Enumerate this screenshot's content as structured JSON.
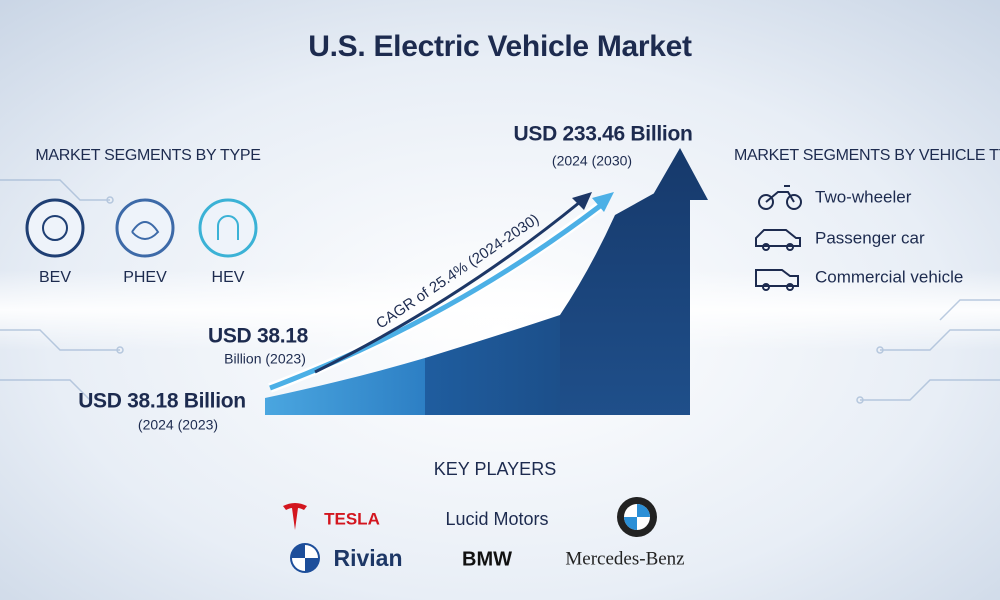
{
  "title": "U.S. Electric Vehicle Market",
  "segments_by_type": {
    "heading": "MARKET SEGMENTS BY TYPE",
    "items": [
      "BEV",
      "PHEV",
      "HEV"
    ]
  },
  "segments_by_vehicle": {
    "heading": "MARKET SEGMENTS BY VEHICLE TY",
    "items": [
      "Two-wheeler",
      "Passenger car",
      "Commercial vehicle"
    ]
  },
  "growth": {
    "end_value": "USD 233.46 Billion",
    "end_period": "(2024 (2030)",
    "cagr": "CAGR of 25.4% (2024-2030)",
    "start_value": "USD 38.18",
    "start_period": "Billion (2023)",
    "base_value": "USD 38.18 Billion",
    "base_period": "(2024 (2023)"
  },
  "key_players": {
    "heading": "KEY PLAYERS",
    "names": [
      "TESLA",
      "Lucid Motors",
      "Rivian",
      "BMW",
      "Mercedes-Benz"
    ]
  }
}
